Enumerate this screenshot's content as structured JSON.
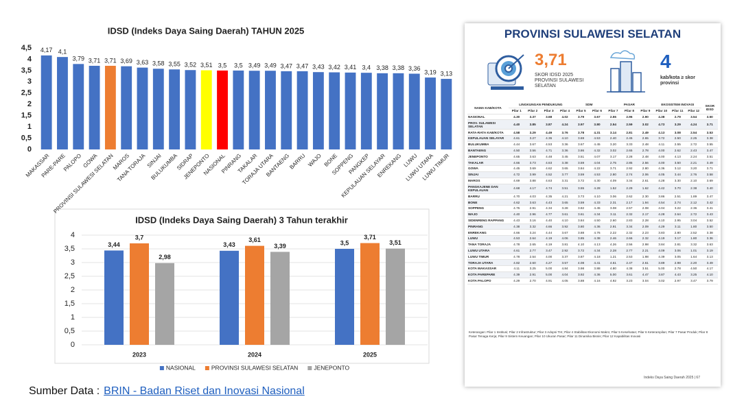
{
  "chart_data": [
    {
      "type": "bar",
      "title": "IDSD (Indeks Daya Saing Daerah) TAHUN 2025",
      "categories": [
        "MAKASSAR",
        "PARE-PARE",
        "PALOPO",
        "GOWA",
        "PROVINSI SULAWESI SELATAN",
        "MAROS",
        "TANA TORAJA",
        "SINJAI",
        "BULUKUMBA",
        "SIDRAP",
        "JENEPONTO",
        "NASIONAL",
        "PINRANG",
        "TAKALAR",
        "TORAJA UTARA",
        "BANTAENG",
        "BARRU",
        "WAJO",
        "BONE",
        "SOPPENG",
        "PANGKEP",
        "KEPULAUAN SELAYAR",
        "ENREKANG",
        "LUWU",
        "LUWU UTARA",
        "LUWU TIMUR"
      ],
      "values": [
        4.17,
        4.1,
        3.79,
        3.71,
        3.71,
        3.69,
        3.63,
        3.58,
        3.55,
        3.52,
        3.51,
        3.5,
        3.5,
        3.49,
        3.49,
        3.47,
        3.47,
        3.43,
        3.42,
        3.41,
        3.4,
        3.38,
        3.38,
        3.36,
        3.19,
        3.13
      ],
      "value_labels": [
        "4,17",
        "4,1",
        "3,79",
        "3,71",
        "3,71",
        "3,69",
        "3,63",
        "3,58",
        "3,55",
        "3,52",
        "3,51",
        "3,5",
        "3,5",
        "3,49",
        "3,49",
        "3,47",
        "3,47",
        "3,43",
        "3,42",
        "3,41",
        "3,4",
        "3,38",
        "3,38",
        "3,36",
        "3,19",
        "3,13"
      ],
      "colors": [
        "#4472c4",
        "#4472c4",
        "#4472c4",
        "#4472c4",
        "#ed7d31",
        "#4472c4",
        "#4472c4",
        "#4472c4",
        "#4472c4",
        "#4472c4",
        "#ffff00",
        "#ff0000",
        "#4472c4",
        "#4472c4",
        "#4472c4",
        "#4472c4",
        "#4472c4",
        "#4472c4",
        "#4472c4",
        "#4472c4",
        "#4472c4",
        "#4472c4",
        "#4472c4",
        "#4472c4",
        "#4472c4",
        "#4472c4"
      ],
      "ylim": [
        0,
        4.5
      ],
      "yticks": [
        0,
        {
          "value": 0.5,
          "label": "0,5"
        },
        1,
        {
          "value": 1.5,
          "label": "1,5"
        },
        2,
        {
          "value": 2.5,
          "label": "2,5"
        },
        3,
        {
          "value": 3.5,
          "label": "3,5"
        },
        4,
        {
          "value": 4.5,
          "label": "4,5"
        }
      ],
      "grid": false
    },
    {
      "type": "grouped_bar",
      "title": "IDSD (Indeks Daya Saing Daerah) 3 Tahun terakhir",
      "categories": [
        "2023",
        "2024",
        "2025"
      ],
      "series": [
        {
          "name": "NASIONAL",
          "color": "#4472c4",
          "values": [
            3.44,
            3.43,
            3.5
          ],
          "value_labels": [
            "3,44",
            "3,43",
            "3,5"
          ]
        },
        {
          "name": "PROVINSI SULAWESI SELATAN",
          "color": "#ed7d31",
          "values": [
            3.7,
            3.61,
            3.71
          ],
          "value_labels": [
            "3,7",
            "3,61",
            "3,71"
          ]
        },
        {
          "name": "JENEPONTO",
          "color": "#a5a5a5",
          "values": [
            2.98,
            3.39,
            3.51
          ],
          "value_labels": [
            "2,98",
            "3,39",
            "3,51"
          ]
        }
      ],
      "ylim": [
        0,
        4
      ],
      "yticks": [
        0,
        {
          "value": 0.5,
          "label": "0,5"
        },
        1,
        {
          "value": 1.5,
          "label": "1,5"
        },
        2,
        {
          "value": 2.5,
          "label": "2,5"
        },
        3,
        {
          "value": 3.5,
          "label": "3,5"
        },
        4
      ],
      "grid": true,
      "legend": "bottom"
    }
  ],
  "source": {
    "label": "Sumber Data :",
    "link": "BRIN - Badan Riset dan Inovasi Nasional"
  },
  "document": {
    "title": "PROVINSI SULAWESI SELATAN",
    "score": "3,71",
    "score_caption": "SKOR IDSD 2025 PROVINSI SULAWESI SELATAN",
    "count": "4",
    "count_caption": "kab/kota ≥ skor provinsi",
    "table": {
      "groups": [
        "NAMA KAB/KOTA",
        "LINGKUNGAN PENDUKUNG",
        "SDM",
        "PASAR",
        "EKOSISTEM INOVASI",
        "SKOR IDSD"
      ],
      "columns": [
        "Pilar 1",
        "Pilar 2",
        "Pilar 3",
        "Pilar 4",
        "Pilar 5",
        "Pilar 6",
        "Pilar 7",
        "Pilar 8",
        "Pilar 9",
        "Pilar 10",
        "Pilar 11",
        "Pilar 12"
      ],
      "rows": [
        [
          "NASIONAL",
          "4.30",
          "3.37",
          "3.68",
          "4.02",
          "3.79",
          "3.67",
          "2.55",
          "2.96",
          "2.90",
          "4.38",
          "2.79",
          "3.54",
          "3.50"
        ],
        [
          "PROV. SULAWESI SELATAN",
          "4.40",
          "3.85",
          "3.87",
          "4.24",
          "3.97",
          "3.80",
          "2.54",
          "2.59",
          "3.02",
          "4.73",
          "3.29",
          "4.24",
          "3.71"
        ],
        [
          "RATA-RATA KAB/KOTA",
          "4.58",
          "3.29",
          "4.49",
          "3.76",
          "3.78",
          "4.31",
          "3.14",
          "2.81",
          "2.49",
          "4.13",
          "3.08",
          "2.54",
          "3.53"
        ],
        [
          "KEPULAUAN SELAYAR",
          "4.61",
          "3.27",
          "4.36",
          "4.10",
          "3.69",
          "4.53",
          "2.40",
          "2.45",
          "2.65",
          "3.72",
          "2.50",
          "2.25",
          "3.38"
        ],
        [
          "BULUKUMBA",
          "4.44",
          "3.67",
          "4.53",
          "3.36",
          "3.67",
          "4.45",
          "3.20",
          "3.33",
          "2.48",
          "4.11",
          "2.55",
          "2.72",
          "3.55"
        ],
        [
          "BANTAENG",
          "4.50",
          "3.56",
          "4.71",
          "3.36",
          "3.86",
          "4.32",
          "3.02",
          "2.65",
          "2.78",
          "4.00",
          "2.62",
          "2.43",
          "3.47"
        ],
        [
          "JENEPONTO",
          "4.65",
          "3.63",
          "4.48",
          "3.45",
          "3.51",
          "4.07",
          "3.17",
          "2.28",
          "2.48",
          "4.00",
          "4.13",
          "2.24",
          "3.51"
        ],
        [
          "TAKALAR",
          "4.66",
          "3.73",
          "4.63",
          "3.38",
          "3.59",
          "4.04",
          "2.75",
          "2.85",
          "2.56",
          "4.00",
          "3.50",
          "2.21",
          "3.49"
        ],
        [
          "GOWA",
          "4.45",
          "3.69",
          "4.62",
          "3.65",
          "3.84",
          "4.22",
          "3.71",
          "2.92",
          "2.80",
          "4.36",
          "3.12",
          "3.20",
          "3.71"
        ],
        [
          "SINJAI",
          "4.72",
          "3.99",
          "4.52",
          "3.77",
          "3.59",
          "4.53",
          "2.80",
          "2.74",
          "2.06",
          "4.05",
          "3.44",
          "2.76",
          "3.58"
        ],
        [
          "MAROS",
          "4.69",
          "3.88",
          "4.63",
          "3.31",
          "3.72",
          "4.30",
          "4.09",
          "3.34",
          "2.61",
          "4.28",
          "3.30",
          "2.10",
          "3.69"
        ],
        [
          "PANGKAJENE DAN KEPULAUAN",
          "4.68",
          "4.17",
          "4.74",
          "3.51",
          "3.55",
          "4.28",
          "1.52",
          "2.29",
          "1.62",
          "4.42",
          "3.70",
          "2.38",
          "3.40"
        ],
        [
          "BARRU",
          "4.70",
          "4.03",
          "4.35",
          "4.21",
          "3.73",
          "4.10",
          "3.06",
          "2.62",
          "2.30",
          "3.86",
          "2.51",
          "1.89",
          "3.47"
        ],
        [
          "BONE",
          "4.62",
          "3.63",
          "4.43",
          "3.65",
          "3.59",
          "4.33",
          "2.31",
          "2.17",
          "1.94",
          "4.54",
          "2.74",
          "2.12",
          "3.42"
        ],
        [
          "SOPPENG",
          "4.76",
          "2.91",
          "4.34",
          "3.28",
          "3.82",
          "4.45",
          "3.08",
          "2.57",
          "2.08",
          "4.04",
          "3.22",
          "2.36",
          "3.41"
        ],
        [
          "WAJO",
          "4.40",
          "2.96",
          "4.77",
          "3.61",
          "3.61",
          "4.34",
          "3.11",
          "2.32",
          "2.17",
          "4.28",
          "2.64",
          "2.72",
          "3.43"
        ],
        [
          "SIDENRENG RAPPANG",
          "4.43",
          "3.16",
          "4.40",
          "4.10",
          "3.84",
          "4.50",
          "2.60",
          "2.83",
          "2.28",
          "4.10",
          "2.95",
          "3.04",
          "3.52"
        ],
        [
          "PINRANG",
          "4.38",
          "3.32",
          "4.66",
          "3.92",
          "3.80",
          "4.36",
          "2.91",
          "3.34",
          "2.09",
          "4.29",
          "3.11",
          "1.80",
          "3.50"
        ],
        [
          "ENREKANG",
          "4.66",
          "3.24",
          "4.44",
          "3.67",
          "3.88",
          "4.76",
          "2.22",
          "2.32",
          "2.23",
          "3.83",
          "2.80",
          "2.52",
          "3.38"
        ],
        [
          "LUWU",
          "4.53",
          "2.64",
          "4.19",
          "4.06",
          "3.85",
          "4.38",
          "2.46",
          "2.66",
          "2.32",
          "4.19",
          "3.17",
          "1.80",
          "3.36"
        ],
        [
          "TANA TORAJA",
          "4.78",
          "2.65",
          "4.19",
          "3.81",
          "4.10",
          "4.13",
          "4.26",
          "2.56",
          "2.98",
          "3.84",
          "2.81",
          "3.32",
          "3.63"
        ],
        [
          "LUWU UTARA",
          "4.61",
          "2.77",
          "3.47",
          "2.92",
          "3.72",
          "4.34",
          "2.28",
          "2.77",
          "2.21",
          "4.09",
          "3.06",
          "1.01",
          "3.19"
        ],
        [
          "LUWU TIMUR",
          "4.78",
          "2.54",
          "4.00",
          "3.37",
          "3.87",
          "4.18",
          "1.21",
          "2.53",
          "1.98",
          "4.39",
          "3.05",
          "1.64",
          "3.13"
        ],
        [
          "TORAJA UTARA",
          "4.82",
          "2.60",
          "4.27",
          "3.57",
          "4.08",
          "4.41",
          "4.61",
          "2.47",
          "2.61",
          "3.89",
          "2.98",
          "2.20",
          "3.49"
        ],
        [
          "KOTA MAKASSAR",
          "4.11",
          "3.25",
          "5.00",
          "4.84",
          "3.98",
          "3.88",
          "4.80",
          "4.38",
          "3.51",
          "5.00",
          "2.78",
          "4.50",
          "4.17"
        ],
        [
          "KOTA PAREPARE",
          "4.39",
          "2.91",
          "5.00",
          "4.04",
          "3.92",
          "4.36",
          "5.00",
          "3.61",
          "4.47",
          "3.87",
          "4.43",
          "3.25",
          "4.10"
        ],
        [
          "KOTA PALOPO",
          "4.29",
          "2.70",
          "4.91",
          "4.05",
          "3.88",
          "4.16",
          "4.92",
          "3.23",
          "3.04",
          "3.02",
          "2.97",
          "3.47",
          "3.79"
        ]
      ]
    },
    "note": "Keterangan: Pilar 1 Institusi; Pilar 2 Infrastruktur; Pilar 3 Adopsi TIK; Pilar 4 Stabilitas Ekonomi Makro; Pilar 5 Kesehatan; Pilar 6 Keterampilan; Pilar 7 Pasar Produk; Pilar 8 Pasar Tenaga Kerja; Pilar 9 Sistem Keuangan; Pilar 10 Ukuran Pasar; Pilar 11 Dinamika Bisnis; Pilar 12 Kapabilitas Inovasi",
    "footer": "Indeks Daya Saing Daerah 2025 | 67"
  }
}
